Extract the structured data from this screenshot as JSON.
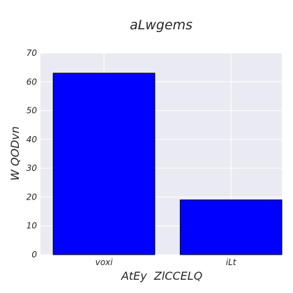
{
  "chart_data": {
    "type": "bar",
    "title": "aLwgems",
    "xlabel": "AtEy  ZlCCELQ",
    "ylabel": "W QODvn",
    "categories": [
      "voxi",
      "iLt"
    ],
    "values": [
      63,
      19
    ],
    "ylim": [
      0,
      70
    ],
    "yticks": [
      0,
      10,
      20,
      30,
      40,
      50,
      60,
      70
    ],
    "grid": true,
    "bar_color": "#0000ff",
    "bar_edge_color": "#000000",
    "plot_background": "#eaeaf2",
    "grid_color": "#ffffff"
  }
}
